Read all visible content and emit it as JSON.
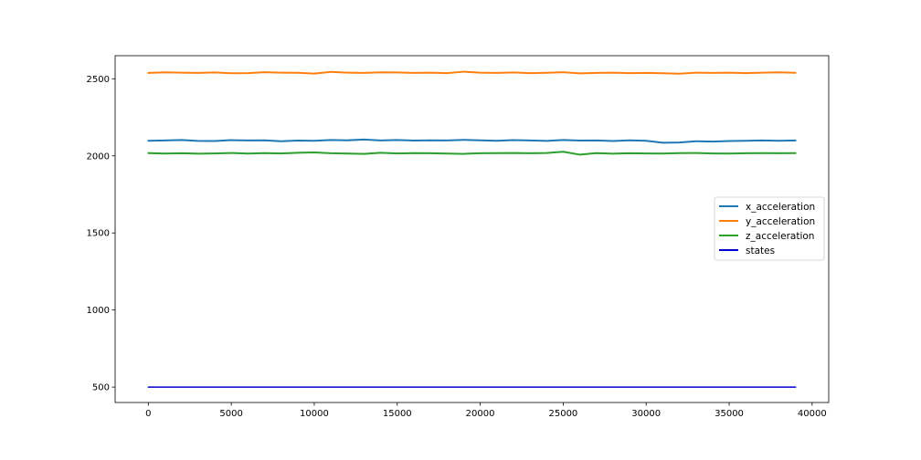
{
  "chart_data": {
    "type": "line",
    "title": "",
    "xlabel": "",
    "ylabel": "",
    "xlim": [
      -2000,
      41000
    ],
    "ylim": [
      400,
      2650
    ],
    "xticks": [
      0,
      5000,
      10000,
      15000,
      20000,
      25000,
      30000,
      35000,
      40000
    ],
    "yticks": [
      500,
      1000,
      1500,
      2000,
      2500
    ],
    "grid": false,
    "legend_position": "center-right",
    "x": [
      0,
      1000,
      2000,
      3000,
      4000,
      5000,
      6000,
      7000,
      8000,
      9000,
      10000,
      11000,
      12000,
      13000,
      14000,
      15000,
      16000,
      17000,
      18000,
      19000,
      20000,
      21000,
      22000,
      23000,
      24000,
      25000,
      26000,
      27000,
      28000,
      29000,
      30000,
      31000,
      32000,
      33000,
      34000,
      35000,
      36000,
      37000,
      38000,
      39000
    ],
    "series": [
      {
        "name": "x_acceleration",
        "color": "#1f77b4",
        "values": [
          2098,
          2100,
          2103,
          2097,
          2096,
          2102,
          2100,
          2101,
          2095,
          2099,
          2098,
          2103,
          2101,
          2106,
          2100,
          2103,
          2099,
          2101,
          2100,
          2104,
          2101,
          2098,
          2102,
          2100,
          2097,
          2103,
          2099,
          2100,
          2096,
          2101,
          2098,
          2085,
          2087,
          2095,
          2093,
          2096,
          2098,
          2100,
          2098,
          2100
        ]
      },
      {
        "name": "y_acceleration",
        "color": "#ff7f0e",
        "values": [
          2538,
          2542,
          2540,
          2538,
          2541,
          2536,
          2537,
          2543,
          2540,
          2539,
          2534,
          2545,
          2540,
          2538,
          2542,
          2541,
          2538,
          2540,
          2537,
          2546,
          2540,
          2538,
          2541,
          2537,
          2539,
          2543,
          2535,
          2538,
          2540,
          2537,
          2538,
          2536,
          2533,
          2540,
          2538,
          2540,
          2537,
          2540,
          2542,
          2539
        ]
      },
      {
        "name": "z_acceleration",
        "color": "#2ca02c",
        "values": [
          2018,
          2015,
          2017,
          2014,
          2016,
          2019,
          2015,
          2018,
          2016,
          2020,
          2022,
          2017,
          2015,
          2013,
          2020,
          2016,
          2018,
          2017,
          2015,
          2013,
          2017,
          2018,
          2019,
          2017,
          2019,
          2027,
          2008,
          2018,
          2014,
          2017,
          2016,
          2015,
          2018,
          2019,
          2016,
          2015,
          2017,
          2018,
          2017,
          2018
        ]
      },
      {
        "name": "states",
        "color": "#0000cc",
        "values": [
          500,
          500,
          500,
          500,
          500,
          500,
          500,
          500,
          500,
          500,
          500,
          500,
          500,
          500,
          500,
          500,
          500,
          500,
          500,
          500,
          500,
          500,
          500,
          500,
          500,
          500,
          500,
          500,
          500,
          500,
          500,
          500,
          500,
          500,
          500,
          500,
          500,
          500,
          500,
          500
        ]
      }
    ]
  }
}
